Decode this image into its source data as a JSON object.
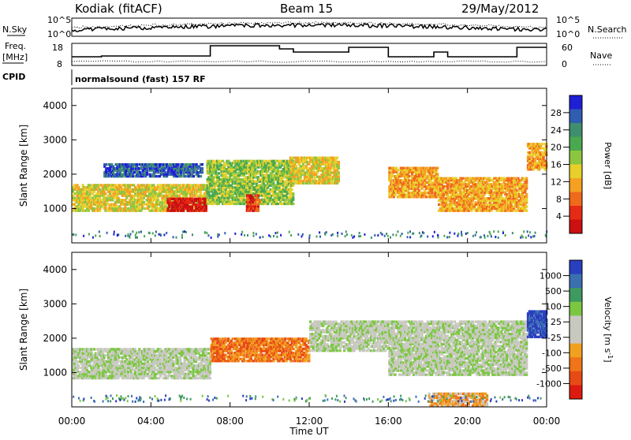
{
  "header": {
    "station": "Kodiak (fitACF)",
    "beam": "Beam 15",
    "date": "29/May/2012"
  },
  "summary": {
    "nsky_label": "N.Sky",
    "nsearch_label": "N.Search",
    "freq_label_1": "Freq.",
    "freq_label_2": "[MHz]",
    "nave_label": "Nave",
    "cpid_label": "CPID",
    "cpid_text": "normalsound (fast) 157 RF",
    "noise_ticks": [
      "10^5",
      "10^0"
    ],
    "freq_ticks": [
      "18",
      "8"
    ],
    "nave_ticks": [
      "60",
      "0"
    ]
  },
  "axes": {
    "ylabel": "Slant Range [km]",
    "xlabel": "Time UT",
    "yticks": [
      "4000",
      "3000",
      "2000",
      "1000"
    ],
    "xticks": [
      "00:00",
      "04:00",
      "08:00",
      "12:00",
      "16:00",
      "20:00",
      "00:00"
    ]
  },
  "colorbars": {
    "power": {
      "label": "Power [dB]",
      "ticks": [
        "28",
        "24",
        "20",
        "16",
        "12",
        "8",
        "4"
      ],
      "colors": [
        "#1f1fd6",
        "#2f5db0",
        "#3f8f6e",
        "#4aa84f",
        "#8cc63f",
        "#e8d02a",
        "#f5a021",
        "#ef6a1b",
        "#e52b16",
        "#cc1010"
      ]
    },
    "velocity": {
      "label": "Velocity [m s",
      "label_sup": "-1",
      "label_end": "]",
      "ticks": [
        "1000",
        "500",
        "100",
        "25",
        "-25",
        "-100",
        "-500",
        "-1000"
      ],
      "colors": [
        "#2a3fbf",
        "#3b70b0",
        "#3f9a60",
        "#7cc742",
        "#c8c8c0",
        "#c8c8c0",
        "#f2a020",
        "#ef7518",
        "#e84a15",
        "#dd1a10"
      ]
    }
  },
  "chart_data": {
    "type": "heatmap",
    "title": "Kodiak (fitACF)",
    "x_range_hours": [
      0,
      24
    ],
    "y_range_km": [
      0,
      4500
    ],
    "panels": [
      {
        "name": "Power [dB]",
        "blocks": [
          {
            "t0": 0.0,
            "t1": 6.8,
            "r0": 900,
            "r1": 1700,
            "level": 5
          },
          {
            "t0": 4.8,
            "t1": 6.8,
            "r0": 900,
            "r1": 1300,
            "level": 9
          },
          {
            "t0": 1.6,
            "t1": 6.6,
            "r0": 1900,
            "r1": 2300,
            "level": 1
          },
          {
            "t0": 6.8,
            "t1": 11.2,
            "r0": 1100,
            "r1": 2400,
            "level": 4
          },
          {
            "t0": 8.8,
            "t1": 9.5,
            "r0": 900,
            "r1": 1400,
            "level": 8
          },
          {
            "t0": 11.0,
            "t1": 13.5,
            "r0": 1700,
            "r1": 2500,
            "level": 5
          },
          {
            "t0": 16.0,
            "t1": 18.5,
            "r0": 1300,
            "r1": 2200,
            "level": 6
          },
          {
            "t0": 18.5,
            "t1": 23.0,
            "r0": 900,
            "r1": 1900,
            "level": 6
          },
          {
            "t0": 23.0,
            "t1": 24.0,
            "r0": 2100,
            "r1": 2900,
            "level": 6
          }
        ]
      },
      {
        "name": "Velocity [m s-1]",
        "blocks": [
          {
            "t0": 0.0,
            "t1": 7.0,
            "r0": 800,
            "r1": 1700,
            "level": 4
          },
          {
            "t0": 7.0,
            "t1": 12.0,
            "r0": 1300,
            "r1": 2000,
            "level": 7
          },
          {
            "t0": 12.0,
            "t1": 16.0,
            "r0": 1600,
            "r1": 2500,
            "level": 4
          },
          {
            "t0": 16.0,
            "t1": 23.0,
            "r0": 900,
            "r1": 2500,
            "level": 4
          },
          {
            "t0": 18.0,
            "t1": 21.0,
            "r0": 0,
            "r1": 400,
            "level": 6
          },
          {
            "t0": 23.0,
            "t1": 24.0,
            "r0": 2000,
            "r1": 2800,
            "level": 0
          }
        ]
      }
    ]
  }
}
